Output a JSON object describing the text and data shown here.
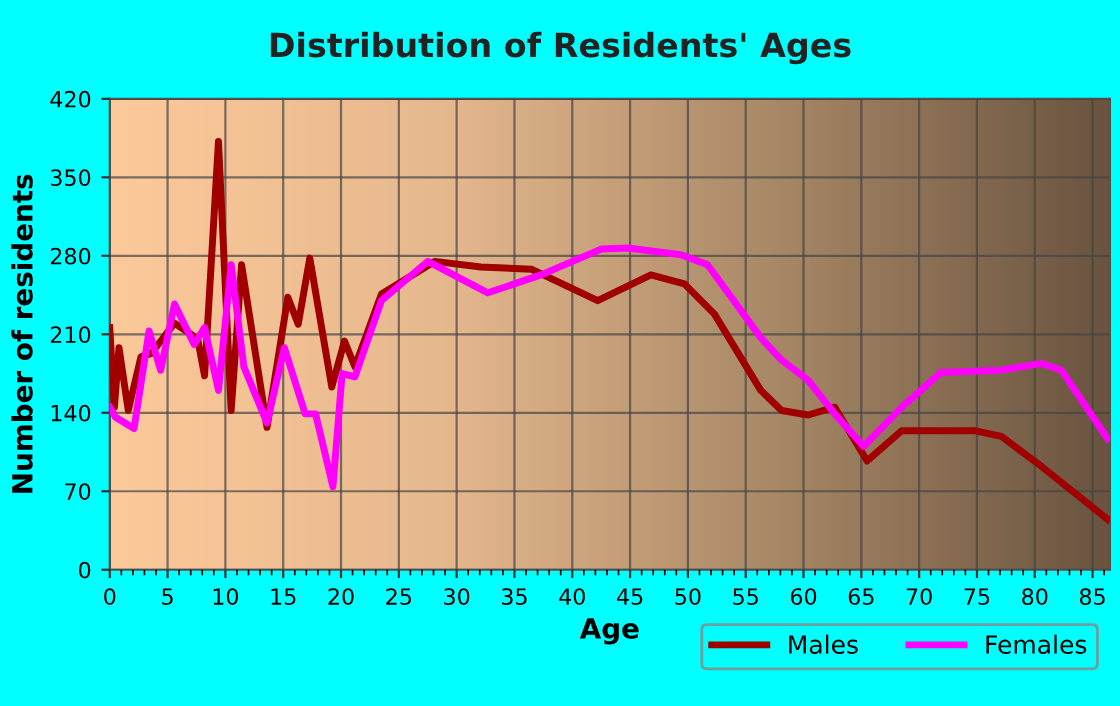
{
  "chart_data": {
    "type": "line",
    "title": "Distribution of Residents' Ages",
    "xlabel": "Age",
    "ylabel": "Number of residents",
    "xlim": [
      0,
      86.5
    ],
    "xticks": [
      0,
      5,
      10,
      15,
      20,
      25,
      30,
      35,
      40,
      45,
      50,
      55,
      60,
      65,
      70,
      75,
      80,
      85
    ],
    "ylim": [
      0,
      420
    ],
    "yticks": [
      0,
      70,
      140,
      210,
      280,
      350,
      420
    ],
    "grid": true,
    "legend": "bottom right",
    "marker": "none",
    "line_style": "solid",
    "series": [
      {
        "name": "Males",
        "color": "#a00000",
        "x": [
          0,
          0.4,
          0.8,
          1.6,
          2.7,
          3.6,
          5.6,
          7.6,
          8.2,
          9.4,
          10.5,
          11.4,
          13.6,
          15.4,
          16.3,
          17.3,
          19.2,
          20.3,
          21.2,
          23.5,
          28.1,
          32.1,
          36.5,
          42.2,
          46.8,
          49.7,
          52.3,
          56.3,
          58.1,
          60.4,
          62.7,
          65.5,
          68.5,
          74.8,
          77.1,
          80.6,
          86.3
        ],
        "values": [
          216,
          145,
          198,
          142,
          190,
          193,
          220,
          206,
          173,
          382,
          142,
          272,
          127,
          243,
          219,
          278,
          163,
          204,
          181,
          246,
          275,
          270,
          268,
          240,
          263,
          255,
          228,
          160,
          142,
          138,
          145,
          97,
          124,
          124,
          119,
          92,
          45
        ]
      },
      {
        "name": "Females",
        "color": "#ff00ff",
        "x": [
          0,
          0.5,
          2.1,
          3.4,
          4.4,
          5.6,
          7.3,
          8.2,
          9.4,
          10.5,
          11.6,
          13.6,
          15.1,
          16.9,
          17.8,
          19.3,
          20.1,
          21.2,
          23.5,
          27.5,
          32.7,
          37.3,
          42.5,
          44.8,
          49.4,
          51.7,
          56.3,
          58.1,
          60.4,
          62.7,
          65.2,
          68.5,
          71.9,
          77.1,
          80.6,
          82.3,
          86.3
        ],
        "values": [
          145,
          136,
          126,
          213,
          178,
          237,
          201,
          216,
          160,
          272,
          181,
          131,
          198,
          139,
          139,
          74,
          175,
          172,
          240,
          275,
          247,
          263,
          286,
          287,
          281,
          272,
          207,
          187,
          169,
          139,
          110,
          145,
          176,
          178,
          184,
          178,
          117
        ]
      }
    ]
  }
}
